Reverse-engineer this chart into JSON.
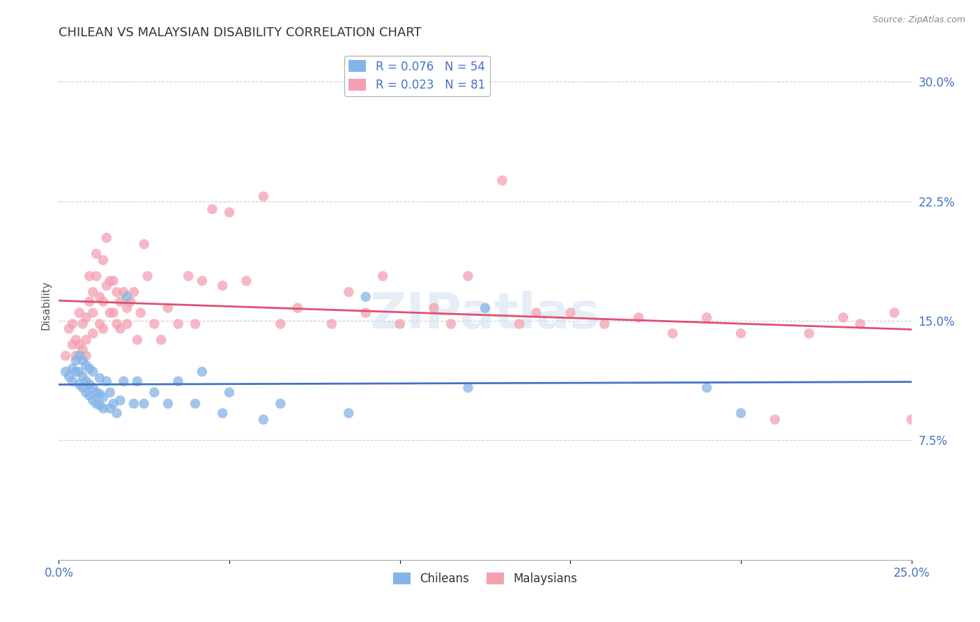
{
  "title": "CHILEAN VS MALAYSIAN DISABILITY CORRELATION CHART",
  "source": "Source: ZipAtlas.com",
  "ylabel_label": "Disability",
  "xlim": [
    0.0,
    0.25
  ],
  "ylim": [
    0.0,
    0.32
  ],
  "xticks": [
    0.0,
    0.05,
    0.1,
    0.15,
    0.2,
    0.25
  ],
  "yticks": [
    0.075,
    0.15,
    0.225,
    0.3
  ],
  "ytick_labels": [
    "7.5%",
    "15.0%",
    "22.5%",
    "30.0%"
  ],
  "xtick_labels": [
    "0.0%",
    "",
    "",
    "",
    "",
    "25.0%"
  ],
  "chilean_R": 0.076,
  "chilean_N": 54,
  "malaysian_R": 0.023,
  "malaysian_N": 81,
  "chilean_color": "#85b4e8",
  "malaysian_color": "#f4a0b0",
  "chilean_line_color": "#4472c4",
  "malaysian_line_color": "#e05070",
  "watermark": "ZIPatlas",
  "chilean_x": [
    0.002,
    0.003,
    0.004,
    0.004,
    0.005,
    0.005,
    0.006,
    0.006,
    0.006,
    0.007,
    0.007,
    0.007,
    0.008,
    0.008,
    0.008,
    0.009,
    0.009,
    0.009,
    0.01,
    0.01,
    0.01,
    0.011,
    0.011,
    0.012,
    0.012,
    0.012,
    0.013,
    0.013,
    0.014,
    0.015,
    0.015,
    0.016,
    0.017,
    0.018,
    0.019,
    0.02,
    0.022,
    0.023,
    0.025,
    0.028,
    0.032,
    0.035,
    0.04,
    0.042,
    0.048,
    0.05,
    0.06,
    0.065,
    0.085,
    0.09,
    0.12,
    0.125,
    0.19,
    0.2
  ],
  "chilean_y": [
    0.118,
    0.115,
    0.12,
    0.112,
    0.125,
    0.118,
    0.11,
    0.118,
    0.128,
    0.108,
    0.115,
    0.125,
    0.105,
    0.112,
    0.122,
    0.103,
    0.11,
    0.12,
    0.1,
    0.108,
    0.118,
    0.098,
    0.105,
    0.097,
    0.104,
    0.114,
    0.095,
    0.102,
    0.112,
    0.095,
    0.105,
    0.098,
    0.092,
    0.1,
    0.112,
    0.165,
    0.098,
    0.112,
    0.098,
    0.105,
    0.098,
    0.112,
    0.098,
    0.118,
    0.092,
    0.105,
    0.088,
    0.098,
    0.092,
    0.165,
    0.108,
    0.158,
    0.108,
    0.092
  ],
  "malaysian_x": [
    0.002,
    0.003,
    0.004,
    0.004,
    0.005,
    0.005,
    0.006,
    0.006,
    0.007,
    0.007,
    0.008,
    0.008,
    0.008,
    0.009,
    0.009,
    0.01,
    0.01,
    0.01,
    0.011,
    0.011,
    0.012,
    0.012,
    0.013,
    0.013,
    0.013,
    0.014,
    0.014,
    0.015,
    0.015,
    0.016,
    0.016,
    0.017,
    0.017,
    0.018,
    0.018,
    0.019,
    0.02,
    0.02,
    0.021,
    0.022,
    0.023,
    0.024,
    0.025,
    0.026,
    0.028,
    0.03,
    0.032,
    0.035,
    0.038,
    0.04,
    0.042,
    0.045,
    0.048,
    0.05,
    0.055,
    0.06,
    0.065,
    0.07,
    0.08,
    0.085,
    0.09,
    0.095,
    0.1,
    0.11,
    0.115,
    0.12,
    0.13,
    0.135,
    0.14,
    0.15,
    0.16,
    0.17,
    0.18,
    0.19,
    0.2,
    0.21,
    0.22,
    0.23,
    0.235,
    0.245,
    0.25
  ],
  "malaysian_y": [
    0.128,
    0.145,
    0.135,
    0.148,
    0.128,
    0.138,
    0.135,
    0.155,
    0.132,
    0.148,
    0.128,
    0.138,
    0.152,
    0.162,
    0.178,
    0.142,
    0.155,
    0.168,
    0.178,
    0.192,
    0.148,
    0.165,
    0.145,
    0.162,
    0.188,
    0.172,
    0.202,
    0.155,
    0.175,
    0.155,
    0.175,
    0.148,
    0.168,
    0.145,
    0.162,
    0.168,
    0.148,
    0.158,
    0.162,
    0.168,
    0.138,
    0.155,
    0.198,
    0.178,
    0.148,
    0.138,
    0.158,
    0.148,
    0.178,
    0.148,
    0.175,
    0.22,
    0.172,
    0.218,
    0.175,
    0.228,
    0.148,
    0.158,
    0.148,
    0.168,
    0.155,
    0.178,
    0.148,
    0.158,
    0.148,
    0.178,
    0.238,
    0.148,
    0.155,
    0.155,
    0.148,
    0.152,
    0.142,
    0.152,
    0.142,
    0.088,
    0.142,
    0.152,
    0.148,
    0.155,
    0.088
  ]
}
